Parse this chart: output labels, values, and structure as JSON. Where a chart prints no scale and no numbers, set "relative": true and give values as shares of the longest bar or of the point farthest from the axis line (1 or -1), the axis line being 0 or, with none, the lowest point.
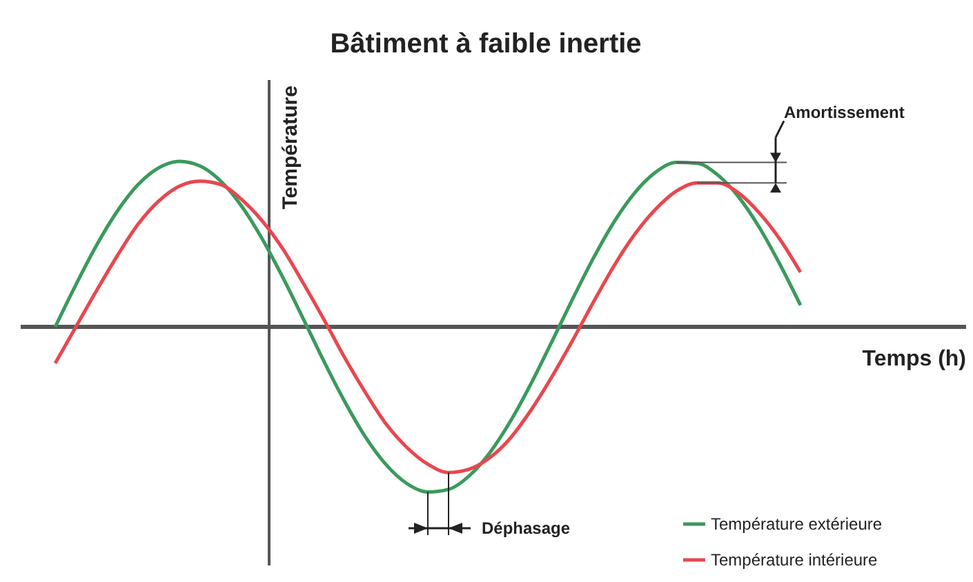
{
  "chart_data": {
    "type": "line",
    "title": "Bâtiment à faible inertie",
    "xlabel": "Temps (h)",
    "ylabel": "Température",
    "relative": true,
    "legend": "bottom right",
    "line_style": "solid",
    "marker": "none",
    "grid": false,
    "categories": [
      null,
      null,
      null,
      null,
      null,
      null,
      null,
      null,
      null,
      null,
      null,
      null,
      null,
      null,
      null,
      null,
      null,
      null,
      null,
      null,
      null,
      null,
      null,
      null,
      null,
      null,
      null,
      null,
      null,
      null,
      null,
      null,
      null,
      null,
      null,
      null,
      null
    ],
    "series": [
      {
        "name": "Température extérieure",
        "color": "#3a9a5c",
        "values": [
          0,
          0.255,
          0.494,
          0.699,
          0.859,
          0.961,
          1,
          0.972,
          0.88,
          0.73,
          0.531,
          0.297,
          0.044,
          -0.213,
          -0.455,
          -0.668,
          -0.835,
          -0.948,
          -0.998,
          -0.982,
          -0.9,
          -0.759,
          -0.568,
          -0.339,
          -0.087,
          0.17,
          0.416,
          0.635,
          0.811,
          0.934,
          0.994,
          0.989,
          0.918,
          0.787,
          0.603,
          0.379,
          0.131
        ]
      },
      {
        "name": "Température intérieure",
        "color": "#e8474f",
        "values": [
          -0.22,
          0,
          0.22,
          0.43,
          0.62,
          0.76,
          0.85,
          0.88,
          0.86,
          0.77,
          0.64,
          0.47,
          0.26,
          0.04,
          -0.19,
          -0.4,
          -0.59,
          -0.73,
          -0.83,
          -0.88,
          -0.86,
          -0.79,
          -0.67,
          -0.5,
          -0.3,
          -0.08,
          0.15,
          0.37,
          0.56,
          0.71,
          0.82,
          0.87,
          0.87,
          0.81,
          0.69,
          0.53,
          0.33
        ]
      }
    ],
    "annotations": [
      "Amortissement",
      "Déphasage"
    ]
  }
}
